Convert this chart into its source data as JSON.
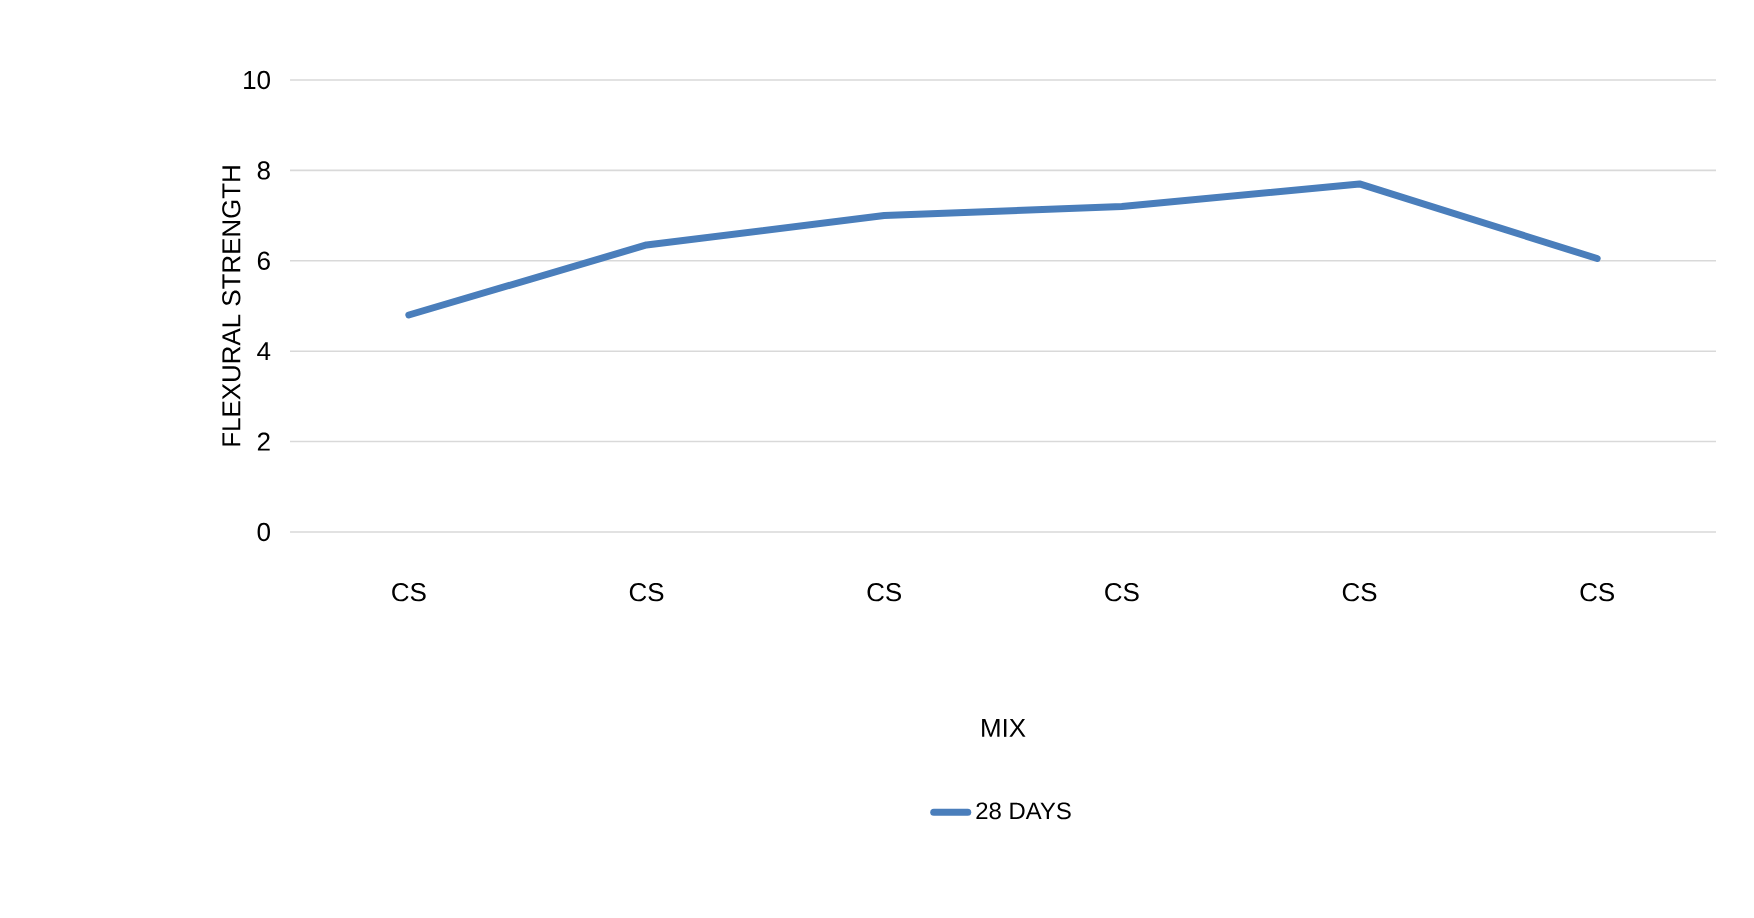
{
  "chart_data": {
    "type": "line",
    "xlabel": "MIX",
    "ylabel": "FLEXURAL STRENGTH",
    "categories": [
      "CS",
      "CS",
      "CS",
      "CS",
      "CS",
      "CS"
    ],
    "series": [
      {
        "name": "28 DAYS",
        "color": "#4a7ebb",
        "values": [
          4.8,
          6.35,
          7.0,
          7.2,
          7.7,
          6.05
        ]
      }
    ],
    "ylim": [
      0,
      10
    ],
    "yticks": [
      0,
      2,
      4,
      6,
      8,
      10
    ],
    "grid": "y",
    "legend": "bottom",
    "marker": "none",
    "line_style": "solid"
  }
}
